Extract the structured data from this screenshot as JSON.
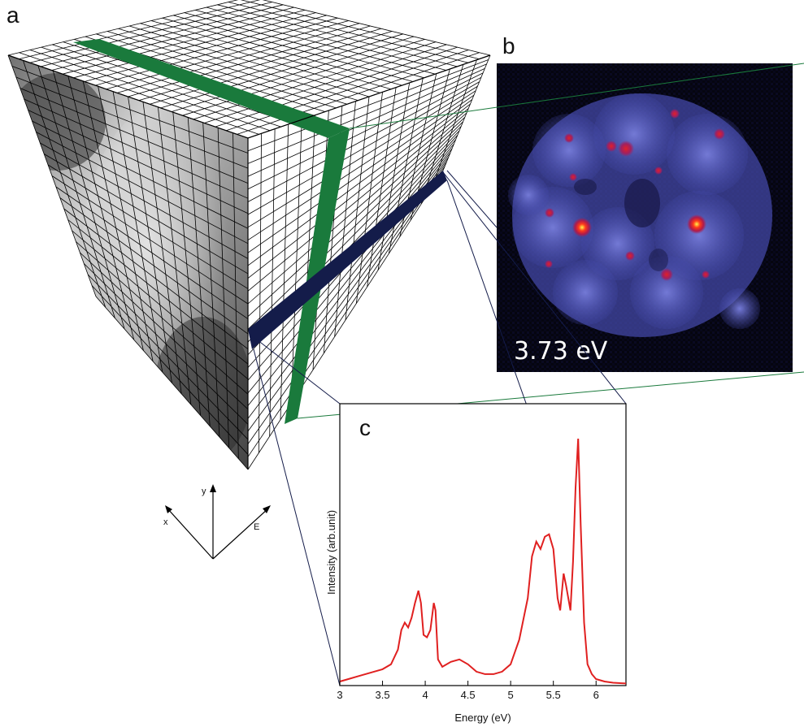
{
  "panels": {
    "a": "a",
    "b": "b",
    "c": "c"
  },
  "axes_indicator": {
    "x": "x",
    "y": "y",
    "e": "E"
  },
  "map_b": {
    "energy_label": "3.73 eV"
  },
  "colors": {
    "green_slice": "#1a7a3c",
    "navy_slice": "#141c4a",
    "spectrum_line": "#e02020",
    "map_background": "#05050f",
    "map_particle": "#4a50b8"
  },
  "chart_data": {
    "type": "line",
    "title": "",
    "xlabel": "Energy (eV)",
    "ylabel": "Intensity (arb.unit)",
    "xlim": [
      3,
      6.35
    ],
    "ylim": [
      0,
      1
    ],
    "x_ticks": [
      "3",
      "3.5",
      "4",
      "4.5",
      "5",
      "5.5",
      "6"
    ],
    "grid": false,
    "series": [
      {
        "name": "",
        "x": [
          3.0,
          3.1,
          3.2,
          3.3,
          3.4,
          3.5,
          3.6,
          3.68,
          3.72,
          3.76,
          3.8,
          3.84,
          3.88,
          3.92,
          3.95,
          3.98,
          4.02,
          4.06,
          4.1,
          4.12,
          4.15,
          4.2,
          4.3,
          4.4,
          4.5,
          4.6,
          4.7,
          4.8,
          4.9,
          5.0,
          5.1,
          5.2,
          5.25,
          5.3,
          5.35,
          5.4,
          5.45,
          5.5,
          5.55,
          5.58,
          5.62,
          5.65,
          5.7,
          5.73,
          5.76,
          5.79,
          5.82,
          5.86,
          5.9,
          5.95,
          6.0,
          6.1,
          6.2,
          6.35
        ],
        "y": [
          0.01,
          0.02,
          0.03,
          0.04,
          0.05,
          0.06,
          0.08,
          0.14,
          0.22,
          0.25,
          0.23,
          0.27,
          0.33,
          0.38,
          0.33,
          0.2,
          0.19,
          0.22,
          0.33,
          0.3,
          0.1,
          0.07,
          0.09,
          0.1,
          0.08,
          0.05,
          0.04,
          0.04,
          0.05,
          0.08,
          0.18,
          0.35,
          0.52,
          0.58,
          0.55,
          0.6,
          0.61,
          0.55,
          0.35,
          0.3,
          0.45,
          0.4,
          0.3,
          0.5,
          0.8,
          1.0,
          0.65,
          0.25,
          0.08,
          0.04,
          0.02,
          0.01,
          0.005,
          0.002
        ]
      }
    ]
  }
}
